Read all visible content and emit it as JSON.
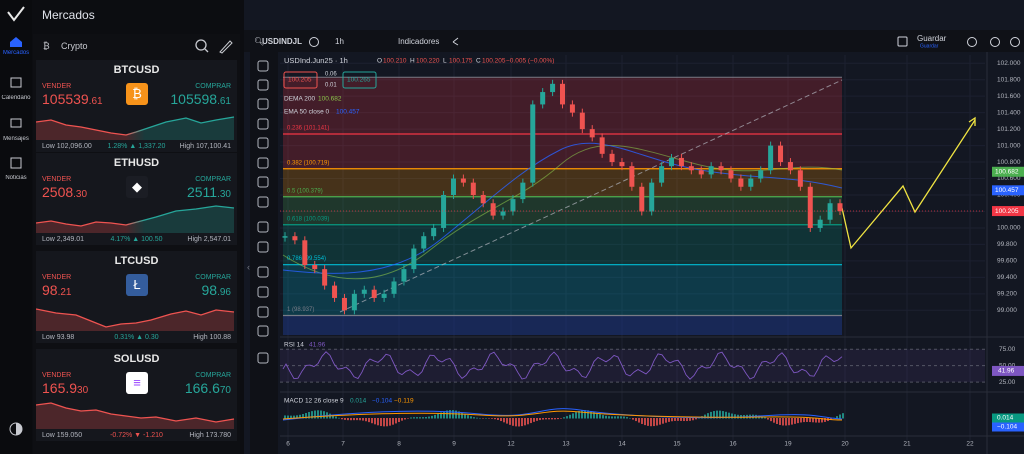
{
  "nav": {
    "items": [
      "Mercados",
      "Calendario",
      "Mensajes",
      "Noticias"
    ]
  },
  "header": {
    "title": "Mercados"
  },
  "panel": {
    "tab": "Crypto",
    "cards": [
      {
        "symbol": "BTCUSD",
        "sell_label": "VENDER",
        "sell_main": "105539",
        "sell_frac": ".61",
        "buy_label": "COMPRAR",
        "buy_main": "105598",
        "buy_frac": ".61",
        "low": "Low 102,096.00",
        "change": "1.28% ▲ 1,337.20",
        "high": "High 107,100.41"
      },
      {
        "symbol": "ETHUSD",
        "sell_label": "VENDER",
        "sell_main": "2508",
        "sell_frac": ".30",
        "buy_label": "COMPRAR",
        "buy_main": "2511",
        "buy_frac": ".30",
        "low": "Low 2,349.01",
        "change": "4.17% ▲ 100.50",
        "high": "High 2,547.01"
      },
      {
        "symbol": "LTCUSD",
        "sell_label": "VENDER",
        "sell_main": "98",
        "sell_frac": ".21",
        "buy_label": "COMPRAR",
        "buy_main": "98",
        "buy_frac": ".96",
        "low": "Low 93.98",
        "change": "0.31% ▲ 0.30",
        "high": "High 100.88"
      },
      {
        "symbol": "SOLUSD",
        "sell_label": "VENDER",
        "sell_main": "165.9",
        "sell_frac": "30",
        "buy_label": "COMPRAR",
        "buy_main": "166.6",
        "buy_frac": "70",
        "low": "Low 159.050",
        "change": "-0.72% ▼ -1.210",
        "high": "High 173.780"
      }
    ]
  },
  "toolbar": {
    "symbol": "USDINDJL",
    "interval": "1h",
    "indicators": "Indicadores",
    "save": "Guardar",
    "save_sub": "Guardar"
  },
  "chart_data": {
    "type": "candlestick",
    "title": "USDInd.Jun25 · 1h",
    "ohlc": [
      {
        "key": "O",
        "value": "100.210"
      },
      {
        "key": "H",
        "value": "100.220"
      },
      {
        "key": "L",
        "value": "100.175"
      },
      {
        "key": "C",
        "value": "100.205"
      }
    ],
    "change": "−0.005 (−0.00%)",
    "sell_box": "100.205",
    "spread": "0.06",
    "spread_sub": "0.01",
    "buy_box": "100.265",
    "indicators": [
      {
        "name": "DEMA 200",
        "value": "100.682"
      },
      {
        "name": "EMA 50 close 0",
        "value": "100.457"
      }
    ],
    "values": [
      99.9,
      99.85,
      99.55,
      99.5,
      99.3,
      99.15,
      99.0,
      99.2,
      99.25,
      99.15,
      99.2,
      99.35,
      99.5,
      99.75,
      99.9,
      100.0,
      100.4,
      100.6,
      100.55,
      100.4,
      100.3,
      100.15,
      100.2,
      100.35,
      100.55,
      101.5,
      101.65,
      101.75,
      101.5,
      101.4,
      101.2,
      101.1,
      100.9,
      100.8,
      100.75,
      100.5,
      100.2,
      100.55,
      100.75,
      100.85,
      100.75,
      100.7,
      100.65,
      100.75,
      100.7,
      100.6,
      100.5,
      100.6,
      100.7,
      101.0,
      100.8,
      100.7,
      100.5,
      100.0,
      100.1,
      100.3,
      100.205
    ],
    "up_color": "#26a69a",
    "down_color": "#ef5350",
    "fib_top": 101.83,
    "fib_levels": [
      {
        "value": 101.141,
        "label": "0.236 (101.141)",
        "color": "#f23645"
      },
      {
        "value": 100.719,
        "label": "0.382 (100.719)",
        "color": "#ff9800"
      },
      {
        "value": 100.379,
        "label": "0.5 (100.379)",
        "color": "#4caf50"
      },
      {
        "value": 100.039,
        "label": "0.618 (100.039)",
        "color": "#089981"
      },
      {
        "value": 99.554,
        "label": "0.786 (99.554)",
        "color": "#00bcd4"
      },
      {
        "value": 98.937,
        "label": "1 (98.937)",
        "color": "#787b86"
      }
    ],
    "ylim": [
      98.7,
      102.1
    ],
    "yticks": [
      {
        "value": 102,
        "label": "102.000"
      },
      {
        "value": 101.8,
        "label": "101.800"
      },
      {
        "value": 101.6,
        "label": "101.600"
      },
      {
        "value": 101.4,
        "label": "101.400"
      },
      {
        "value": 101.2,
        "label": "101.200"
      },
      {
        "value": 101,
        "label": "101.000"
      },
      {
        "value": 100.8,
        "label": "100.800"
      },
      {
        "value": 100.6,
        "label": "100.600"
      },
      {
        "value": 100.4,
        "label": "100.400"
      },
      {
        "value": 100.2,
        "label": "100.200"
      },
      {
        "value": 100,
        "label": "100.000"
      },
      {
        "value": 99.8,
        "label": "99.800"
      },
      {
        "value": 99.6,
        "label": "99.600"
      },
      {
        "value": 99.4,
        "label": "99.400"
      },
      {
        "value": 99.2,
        "label": "99.200"
      },
      {
        "value": 99,
        "label": "99.000"
      }
    ],
    "price_tags": [
      {
        "value": 100.682,
        "label": "100.682",
        "color": "#4caf50"
      },
      {
        "value": 100.457,
        "label": "100.457",
        "color": "#2962ff"
      },
      {
        "value": 100.205,
        "label": "100.205",
        "color": "#f23645"
      }
    ],
    "xticks": [
      "6",
      "7",
      "8",
      "9",
      "12",
      "13",
      "14",
      "15",
      "16",
      "19",
      "20",
      "21",
      "22"
    ],
    "rsi": {
      "title": "RSI 14",
      "value": "41.96",
      "value_num": 41.96,
      "ylim": [
        16,
        89
      ],
      "yticks": [
        {
          "value": 75,
          "label": "75.00"
        },
        {
          "value": 50,
          "label": "50.00"
        },
        {
          "value": 25,
          "label": "25.00"
        }
      ]
    },
    "macd": {
      "title": "MACD 12 26 close 9",
      "values": [
        "0.014",
        "−0.104",
        "−0.119"
      ],
      "tags": [
        {
          "label": "0.014",
          "color": "#089981"
        },
        {
          "label": "−0.104",
          "color": "#2962ff"
        }
      ]
    }
  }
}
